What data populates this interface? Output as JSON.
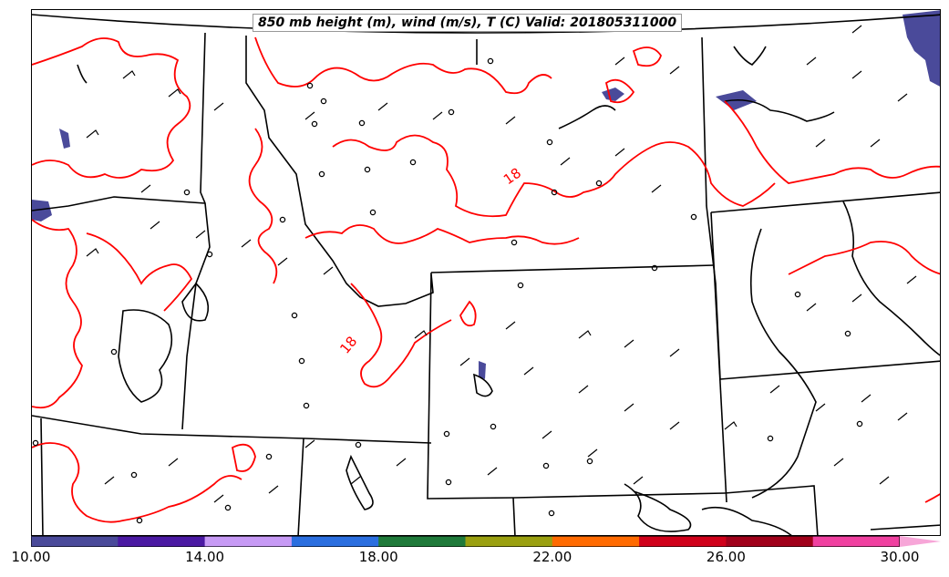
{
  "title": "850 mb height (m), wind (m/s), T (C) Valid: 201805311000",
  "contour_labels": [
    "18",
    "18"
  ],
  "colorbar": {
    "ticks": [
      "10.00",
      "14.00",
      "18.00",
      "22.00",
      "26.00",
      "30.00"
    ],
    "colors": [
      "#4a4a9a",
      "#4b19a3",
      "#c79af5",
      "#2b6fe0",
      "#1f7a3a",
      "#9aa010",
      "#ff6a00",
      "#d0001a",
      "#a0001a",
      "#f040a0",
      "#f7a6d8"
    ]
  },
  "colors": {
    "isotherm": "#ff0000",
    "boundary": "#000000",
    "shading": "#4a4a9a"
  }
}
